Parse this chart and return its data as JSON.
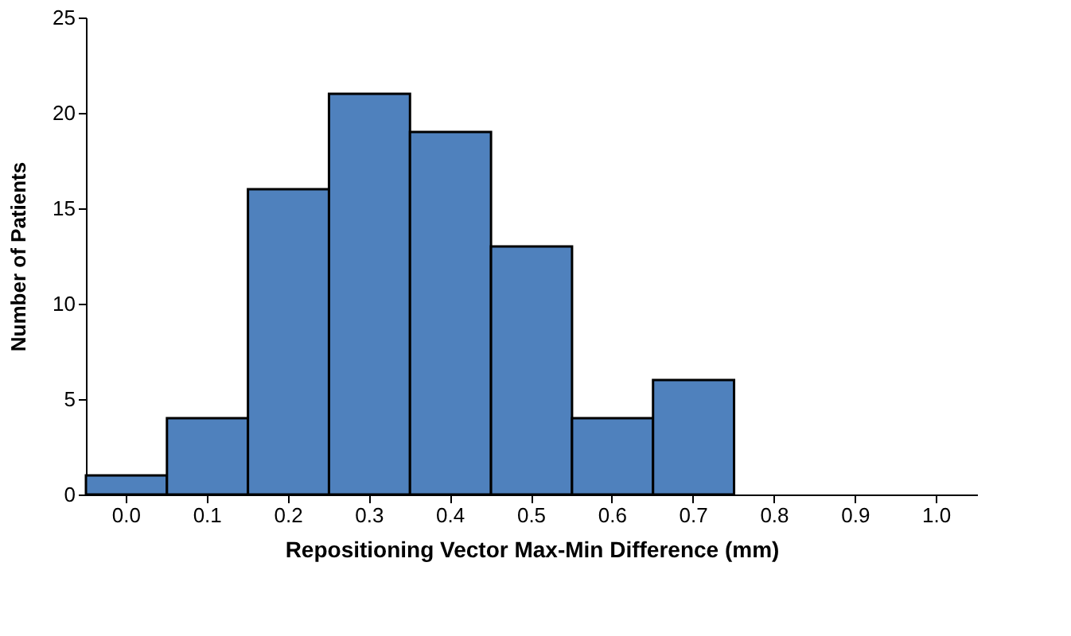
{
  "chart_data": {
    "type": "bar",
    "xlabel": "Repositioning Vector Max-Min Difference (mm)",
    "ylabel": "Number of Patients",
    "categories": [
      "0.0",
      "0.1",
      "0.2",
      "0.3",
      "0.4",
      "0.5",
      "0.6",
      "0.7",
      "0.8",
      "0.9",
      "1.0"
    ],
    "values": [
      1,
      4,
      16,
      21,
      19,
      13,
      4,
      6,
      0,
      0,
      0
    ],
    "color": "#4f81bd",
    "ylim": [
      0,
      25
    ],
    "yticks": [
      0,
      5,
      10,
      15,
      20,
      25
    ],
    "grid": false
  }
}
